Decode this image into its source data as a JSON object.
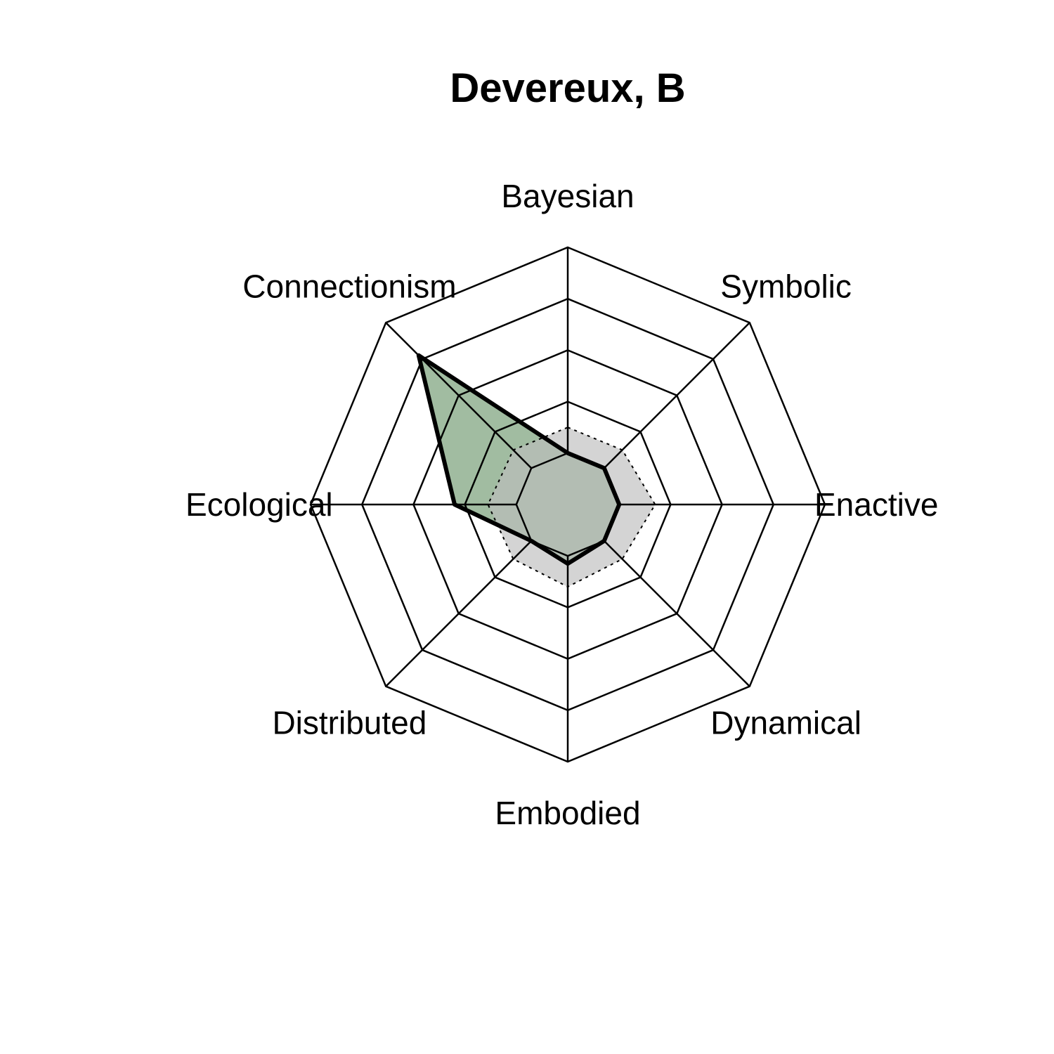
{
  "chart_data": {
    "type": "radar",
    "title": "Devereux, B",
    "axes": [
      "Bayesian",
      "Symbolic",
      "Enactive",
      "Dynamical",
      "Embodied",
      "Distributed",
      "Ecological",
      "Connectionism"
    ],
    "range": [
      0,
      5
    ],
    "grid_levels": 5,
    "series": [
      {
        "values": [
          1.0,
          1.0,
          1.0,
          1.0,
          1.15,
          1.0,
          2.2,
          4.1
        ],
        "fill_color": "#2f6b2f",
        "fill_opacity": 0.45,
        "line_color": "#000000",
        "line_style": "solid"
      },
      {
        "values": [
          1.5,
          1.5,
          1.7,
          1.5,
          1.6,
          1.5,
          1.55,
          1.5
        ],
        "fill_color": "#bdbdbd",
        "fill_opacity": 0.65,
        "line_color": "#000000",
        "line_style": "dotted"
      }
    ],
    "grid_color": "#000000"
  }
}
